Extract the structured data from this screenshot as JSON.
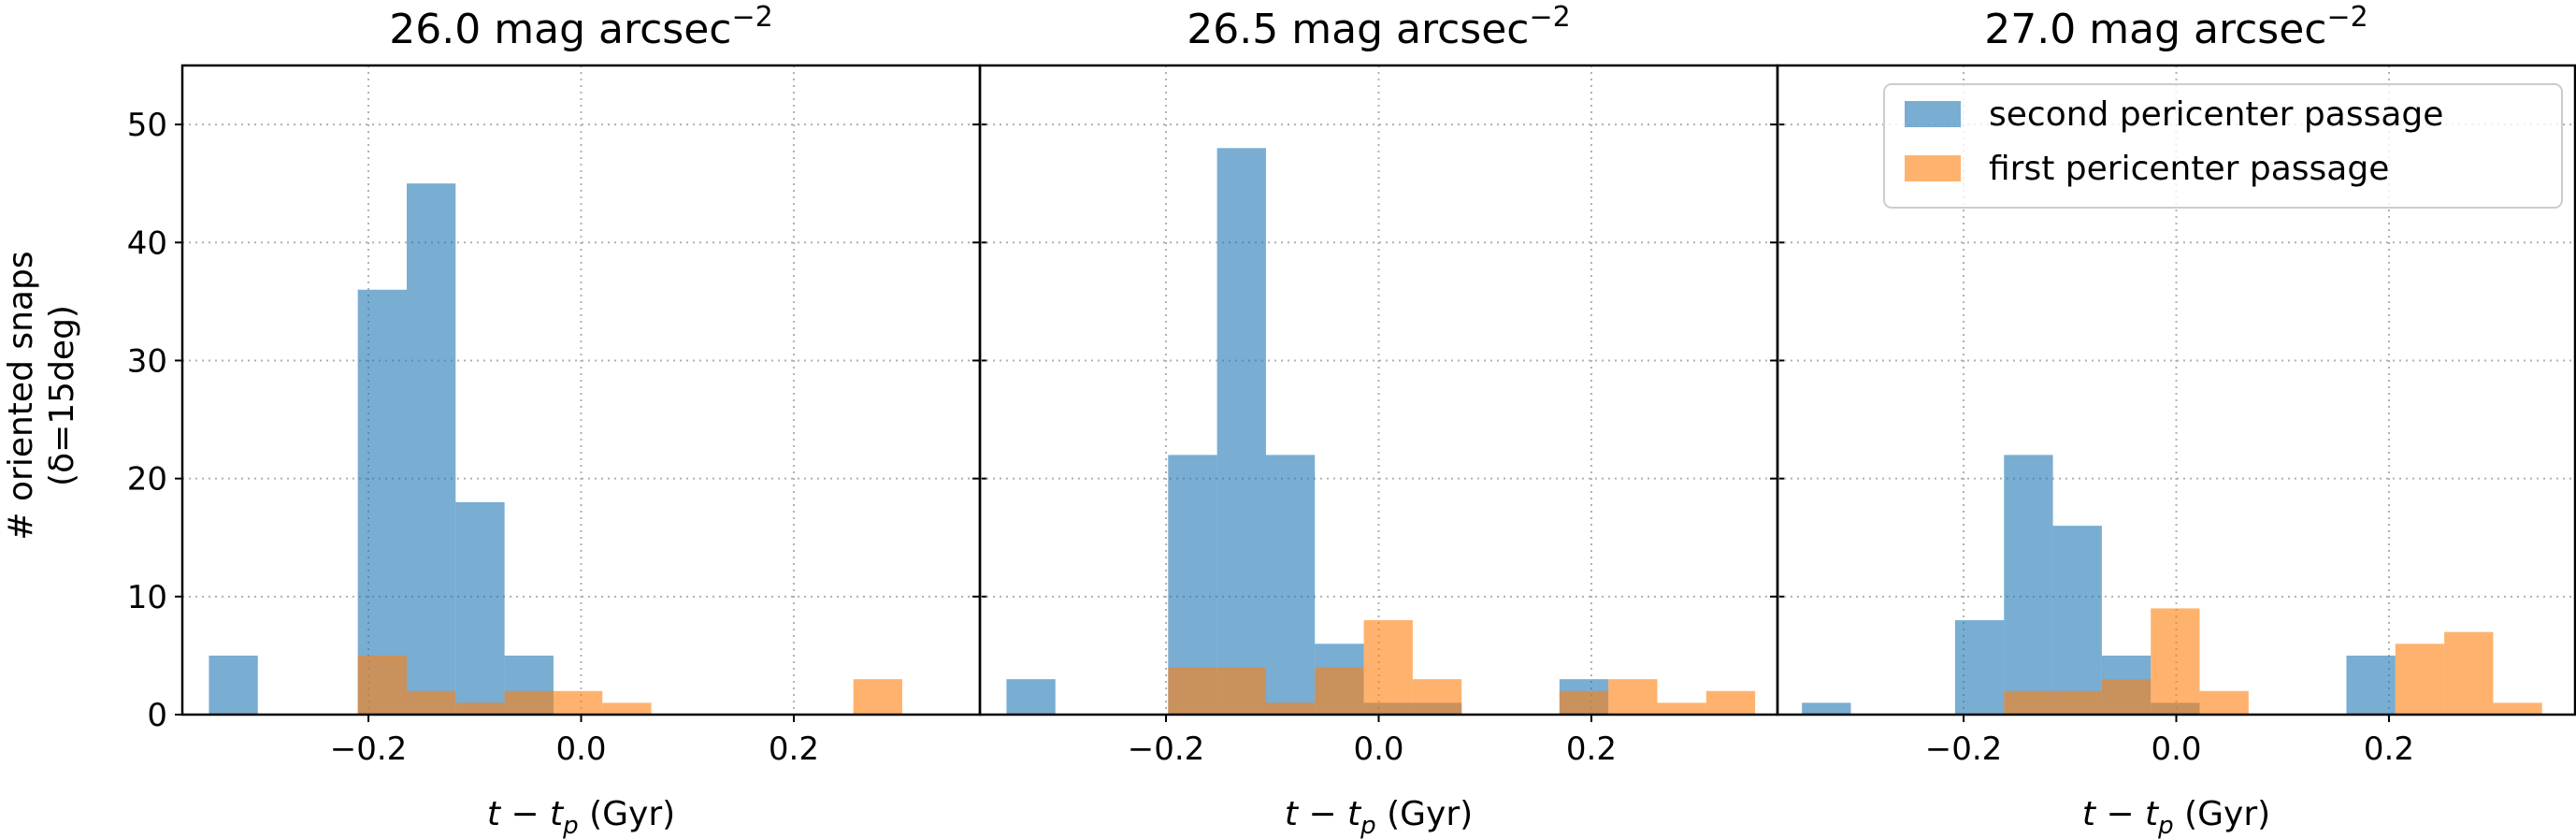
{
  "figure": {
    "ylabel_line1": "# oriented snaps",
    "ylabel_line2": "(δ=15deg)"
  },
  "legend": {
    "placement": "top-right of third panel",
    "items": [
      {
        "label": "second pericenter passage",
        "color": "#1f77b4"
      },
      {
        "label": "first pericenter passage",
        "color": "#ff7f0e"
      }
    ]
  },
  "style": {
    "second_color": "#1f77b4",
    "first_color": "#ff7f0e",
    "bar_alpha": 0.6,
    "grid": "dotted gray"
  },
  "chart_data": [
    {
      "type": "bar",
      "title_main": "26.0 mag arcsec",
      "title_sup": "−2",
      "xlabel": "t − t_p (Gyr)",
      "xlim": [
        -0.375,
        0.375
      ],
      "ylim": [
        0,
        55
      ],
      "xticks": [
        {
          "v": -0.2,
          "label": "−0.2"
        },
        {
          "v": 0.0,
          "label": "0.0"
        },
        {
          "v": 0.2,
          "label": "0.2"
        }
      ],
      "yticks": [
        {
          "v": 0,
          "label": "0"
        },
        {
          "v": 10,
          "label": "10"
        },
        {
          "v": 20,
          "label": "20"
        },
        {
          "v": 30,
          "label": "30"
        },
        {
          "v": 40,
          "label": "40"
        },
        {
          "v": 50,
          "label": "50"
        }
      ],
      "series": [
        {
          "name": "second pericenter passage",
          "color": "#1f77b4",
          "bins": [
            {
              "x0": -0.35,
              "x1": -0.304,
              "y": 5
            },
            {
              "x0": -0.21,
              "x1": -0.164,
              "y": 36
            },
            {
              "x0": -0.164,
              "x1": -0.118,
              "y": 45
            },
            {
              "x0": -0.118,
              "x1": -0.072,
              "y": 18
            },
            {
              "x0": -0.072,
              "x1": -0.026,
              "y": 5
            }
          ]
        },
        {
          "name": "first pericenter passage",
          "color": "#ff7f0e",
          "bins": [
            {
              "x0": -0.21,
              "x1": -0.164,
              "y": 5
            },
            {
              "x0": -0.164,
              "x1": -0.118,
              "y": 2
            },
            {
              "x0": -0.118,
              "x1": -0.072,
              "y": 1
            },
            {
              "x0": -0.072,
              "x1": -0.026,
              "y": 2
            },
            {
              "x0": -0.026,
              "x1": 0.02,
              "y": 2
            },
            {
              "x0": 0.02,
              "x1": 0.066,
              "y": 1
            },
            {
              "x0": 0.256,
              "x1": 0.302,
              "y": 3
            }
          ]
        }
      ]
    },
    {
      "type": "bar",
      "title_main": "26.5 mag arcsec",
      "title_sup": "−2",
      "xlabel": "t − t_p (Gyr)",
      "xlim": [
        -0.375,
        0.375
      ],
      "ylim": [
        0,
        55
      ],
      "xticks": [
        {
          "v": -0.2,
          "label": "−0.2"
        },
        {
          "v": 0.0,
          "label": "0.0"
        },
        {
          "v": 0.2,
          "label": "0.2"
        }
      ],
      "yticks": [],
      "series": [
        {
          "name": "second pericenter passage",
          "color": "#1f77b4",
          "bins": [
            {
              "x0": -0.35,
              "x1": -0.304,
              "y": 3
            },
            {
              "x0": -0.198,
              "x1": -0.152,
              "y": 22
            },
            {
              "x0": -0.152,
              "x1": -0.106,
              "y": 48
            },
            {
              "x0": -0.106,
              "x1": -0.06,
              "y": 22
            },
            {
              "x0": -0.06,
              "x1": -0.014,
              "y": 6
            },
            {
              "x0": -0.014,
              "x1": 0.032,
              "y": 1
            },
            {
              "x0": 0.032,
              "x1": 0.078,
              "y": 1
            },
            {
              "x0": 0.17,
              "x1": 0.216,
              "y": 3
            }
          ]
        },
        {
          "name": "first pericenter passage",
          "color": "#ff7f0e",
          "bins": [
            {
              "x0": -0.198,
              "x1": -0.152,
              "y": 4
            },
            {
              "x0": -0.152,
              "x1": -0.106,
              "y": 4
            },
            {
              "x0": -0.106,
              "x1": -0.06,
              "y": 1
            },
            {
              "x0": -0.06,
              "x1": -0.014,
              "y": 4
            },
            {
              "x0": -0.014,
              "x1": 0.032,
              "y": 8
            },
            {
              "x0": 0.032,
              "x1": 0.078,
              "y": 3
            },
            {
              "x0": 0.17,
              "x1": 0.216,
              "y": 2
            },
            {
              "x0": 0.216,
              "x1": 0.262,
              "y": 3
            },
            {
              "x0": 0.262,
              "x1": 0.308,
              "y": 1
            },
            {
              "x0": 0.308,
              "x1": 0.354,
              "y": 2
            }
          ]
        }
      ]
    },
    {
      "type": "bar",
      "title_main": "27.0 mag arcsec",
      "title_sup": "−2",
      "xlabel": "t − t_p (Gyr)",
      "xlim": [
        -0.375,
        0.375
      ],
      "ylim": [
        0,
        55
      ],
      "xticks": [
        {
          "v": -0.2,
          "label": "−0.2"
        },
        {
          "v": 0.0,
          "label": "0.0"
        },
        {
          "v": 0.2,
          "label": "0.2"
        }
      ],
      "yticks": [],
      "series": [
        {
          "name": "second pericenter passage",
          "color": "#1f77b4",
          "bins": [
            {
              "x0": -0.352,
              "x1": -0.306,
              "y": 1
            },
            {
              "x0": -0.208,
              "x1": -0.162,
              "y": 8
            },
            {
              "x0": -0.162,
              "x1": -0.116,
              "y": 22
            },
            {
              "x0": -0.116,
              "x1": -0.07,
              "y": 16
            },
            {
              "x0": -0.07,
              "x1": -0.024,
              "y": 5
            },
            {
              "x0": -0.024,
              "x1": 0.022,
              "y": 1
            },
            {
              "x0": 0.16,
              "x1": 0.206,
              "y": 5
            }
          ]
        },
        {
          "name": "first pericenter passage",
          "color": "#ff7f0e",
          "bins": [
            {
              "x0": -0.162,
              "x1": -0.116,
              "y": 2
            },
            {
              "x0": -0.116,
              "x1": -0.07,
              "y": 2
            },
            {
              "x0": -0.07,
              "x1": -0.024,
              "y": 3
            },
            {
              "x0": -0.024,
              "x1": 0.022,
              "y": 9
            },
            {
              "x0": 0.022,
              "x1": 0.068,
              "y": 2
            },
            {
              "x0": 0.206,
              "x1": 0.252,
              "y": 6
            },
            {
              "x0": 0.252,
              "x1": 0.298,
              "y": 7
            },
            {
              "x0": 0.298,
              "x1": 0.344,
              "y": 1
            }
          ]
        }
      ]
    }
  ]
}
